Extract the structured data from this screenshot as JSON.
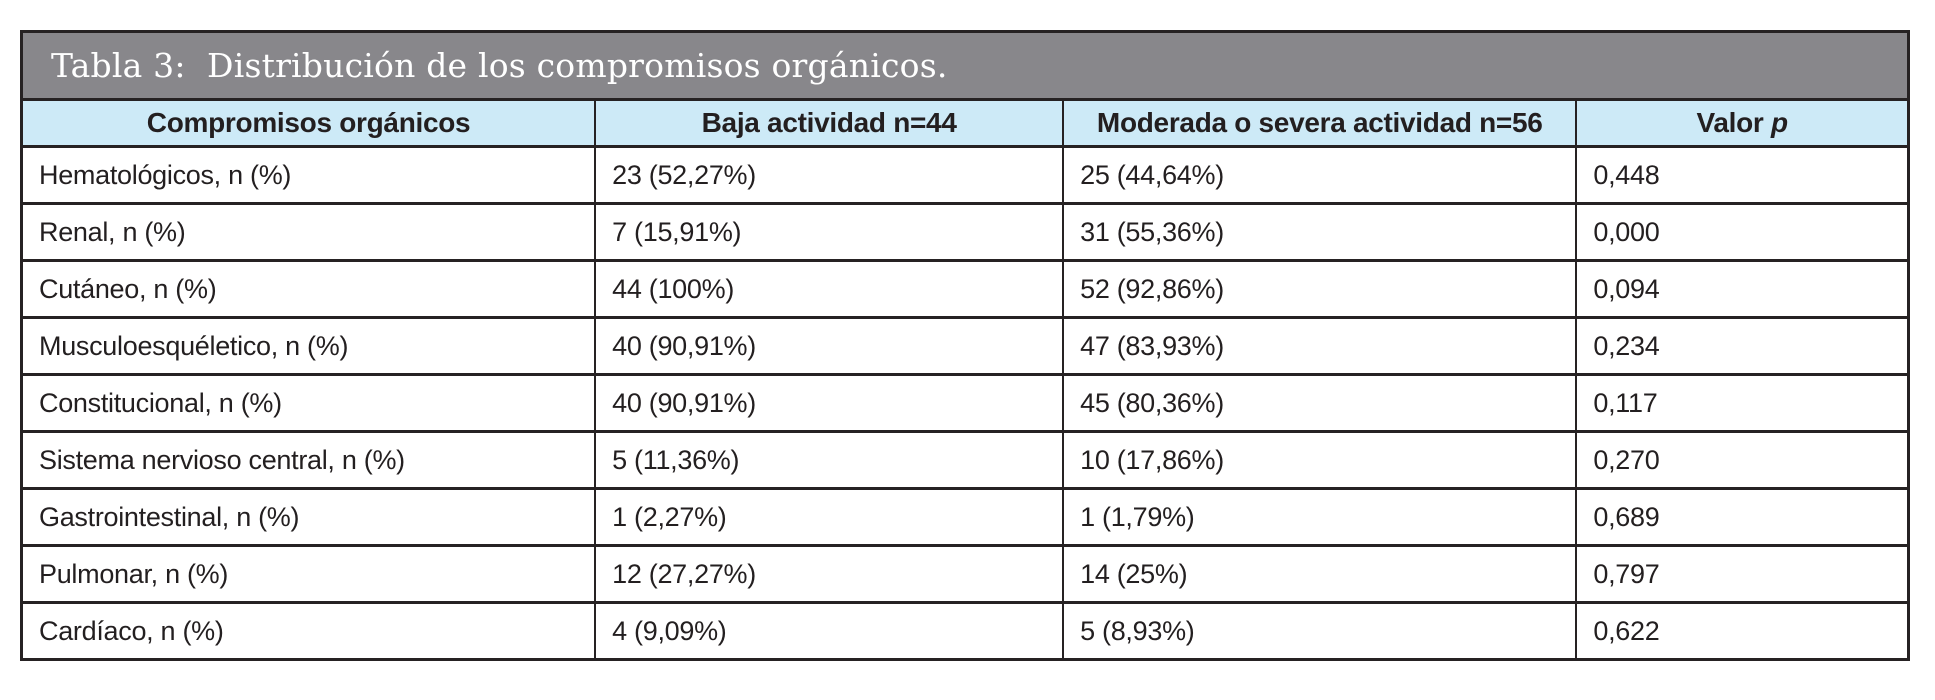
{
  "table": {
    "title": "Tabla 3:  Distribución de los compromisos orgánicos.",
    "title_bg": "#88878b",
    "header_bg": "#cdeaf7",
    "border_color": "#262223",
    "text_color": "#231f20",
    "columns": {
      "organ": "Compromisos orgánicos",
      "low": "Baja actividad n=44",
      "modsev": "Moderada o severa actividad n=56",
      "pvalue_label": "Valor",
      "pvalue_symbol": "p"
    },
    "rows": [
      {
        "label": "Hematológicos, n (%)",
        "low": "23 (52,27%)",
        "modsev": "25 (44,64%)",
        "p": "0,448"
      },
      {
        "label": "Renal, n (%)",
        "low": "7 (15,91%)",
        "modsev": "31 (55,36%)",
        "p": "0,000"
      },
      {
        "label": "Cutáneo, n (%)",
        "low": "44 (100%)",
        "modsev": "52 (92,86%)",
        "p": "0,094"
      },
      {
        "label": "Musculoesquéletico, n (%)",
        "low": "40 (90,91%)",
        "modsev": "47 (83,93%)",
        "p": "0,234"
      },
      {
        "label": "Constitucional, n (%)",
        "low": "40 (90,91%)",
        "modsev": "45 (80,36%)",
        "p": "0,117"
      },
      {
        "label": "Sistema nervioso central, n (%)",
        "low": "5 (11,36%)",
        "modsev": "10 (17,86%)",
        "p": "0,270"
      },
      {
        "label": "Gastrointestinal, n (%)",
        "low": "1 (2,27%)",
        "modsev": "1 (1,79%)",
        "p": "0,689"
      },
      {
        "label": "Pulmonar, n (%)",
        "low": "12 (27,27%)",
        "modsev": "14 (25%)",
        "p": "0,797"
      },
      {
        "label": "Cardíaco, n (%)",
        "low": "4 (9,09%)",
        "modsev": "5 (8,93%)",
        "p": "0,622"
      }
    ]
  },
  "chart_data": {
    "type": "table",
    "title": "Tabla 3: Distribución de los compromisos orgánicos.",
    "columns": [
      "Compromisos orgánicos",
      "Baja actividad n=44",
      "Moderada o severa actividad n=56",
      "Valor p"
    ],
    "rows": [
      [
        "Hematológicos, n (%)",
        "23 (52,27%)",
        "25 (44,64%)",
        "0,448"
      ],
      [
        "Renal, n (%)",
        "7 (15,91%)",
        "31 (55,36%)",
        "0,000"
      ],
      [
        "Cutáneo, n (%)",
        "44 (100%)",
        "52 (92,86%)",
        "0,094"
      ],
      [
        "Musculoesquéletico, n (%)",
        "40 (90,91%)",
        "47 (83,93%)",
        "0,234"
      ],
      [
        "Constitucional, n (%)",
        "40 (90,91%)",
        "45 (80,36%)",
        "0,117"
      ],
      [
        "Sistema nervioso central, n (%)",
        "5 (11,36%)",
        "10 (17,86%)",
        "0,270"
      ],
      [
        "Gastrointestinal, n (%)",
        "1 (2,27%)",
        "1 (1,79%)",
        "0,689"
      ],
      [
        "Pulmonar, n (%)",
        "12 (27,27%)",
        "14 (25%)",
        "0,797"
      ],
      [
        "Cardíaco, n (%)",
        "4 (9,09%)",
        "5 (8,93%)",
        "0,622"
      ]
    ]
  }
}
